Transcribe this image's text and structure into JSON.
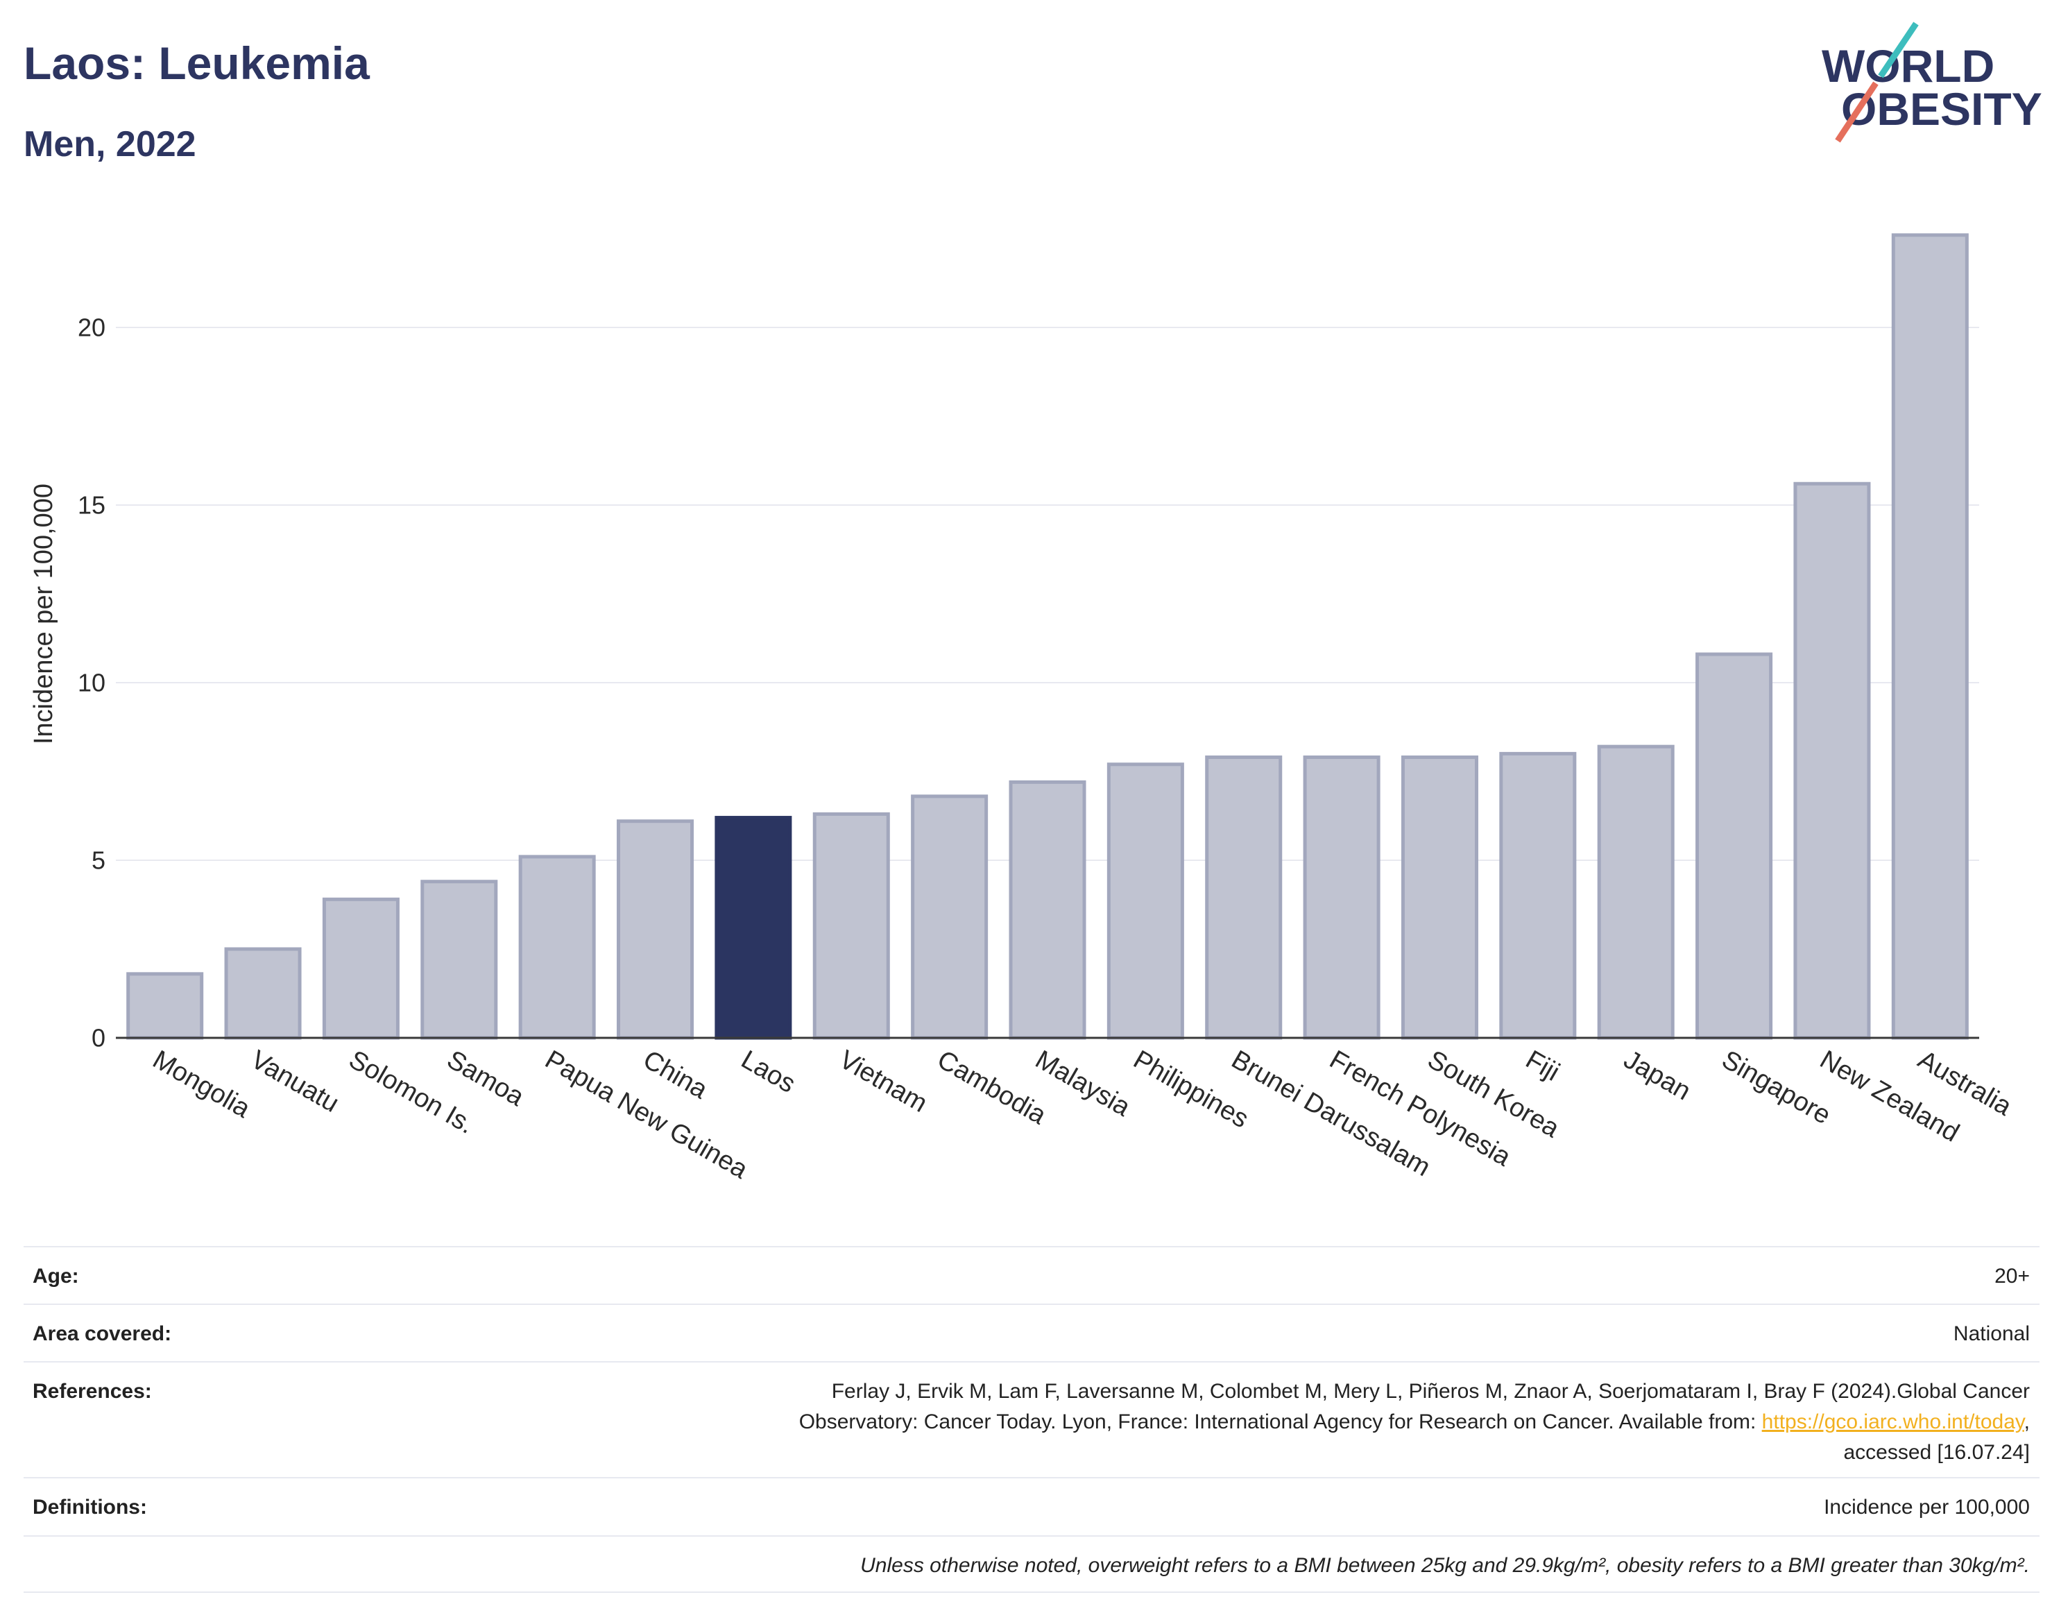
{
  "chart_data": {
    "type": "bar",
    "title": "Laos: Leukemia",
    "subtitle": "Men, 2022",
    "ylabel": "Incidence per 100,000",
    "categories": [
      "Mongolia",
      "Vanuatu",
      "Solomon Is.",
      "Samoa",
      "Papua New Guinea",
      "China",
      "Laos",
      "Vietnam",
      "Cambodia",
      "Malaysia",
      "Philippines",
      "Brunei Darussalam",
      "French Polynesia",
      "South Korea",
      "Fiji",
      "Japan",
      "Singapore",
      "New Zealand",
      "Australia"
    ],
    "values": [
      1.8,
      2.5,
      3.9,
      4.4,
      5.1,
      6.1,
      6.2,
      6.3,
      6.8,
      7.2,
      7.7,
      7.9,
      7.9,
      7.9,
      8.0,
      8.2,
      10.8,
      15.6,
      22.6
    ],
    "highlight_index": 6,
    "ylim": [
      0,
      23.3
    ],
    "yticks": [
      0,
      5,
      10,
      15,
      20
    ],
    "grid": true,
    "colors": {
      "bar": "#c0c3d1",
      "bar_border": "#a2a7bd",
      "highlight": "#2b3561",
      "grid": "#e8e9f0",
      "zero_line": "#3a3a3a",
      "tick": "#2a2a2a",
      "title": "#2d3561"
    }
  },
  "logo": {
    "line1": "WORLD",
    "line2": "OBESITY",
    "colors": {
      "text": "#2d3561",
      "slash_top": "#3dbdbd",
      "slash_bottom": "#e56f5c"
    }
  },
  "info_table": {
    "age": {
      "label": "Age:",
      "value": "20+"
    },
    "area": {
      "label": "Area covered:",
      "value": "National"
    },
    "references": {
      "label": "References:",
      "line1": "Ferlay J, Ervik M, Lam F, Laversanne M, Colombet M, Mery L, Piñeros M, Znaor A, Soerjomataram I, Bray F (2024).Global Cancer",
      "line2_text": "Observatory: Cancer Today. Lyon, France: International Agency for Research on Cancer. Available from: ",
      "link": "https://gco.iarc.who.int/today",
      "line2_end": ",",
      "line3": "accessed [16.07.24]"
    },
    "definitions": {
      "label": "Definitions:",
      "value": "Incidence per 100,000"
    },
    "note": "Unless otherwise noted, overweight refers to a BMI between 25kg and 29.9kg/m², obesity refers to a BMI greater than 30kg/m².",
    "colors": {
      "link": "#f2b01e",
      "divider": "#e7e9f0"
    }
  }
}
